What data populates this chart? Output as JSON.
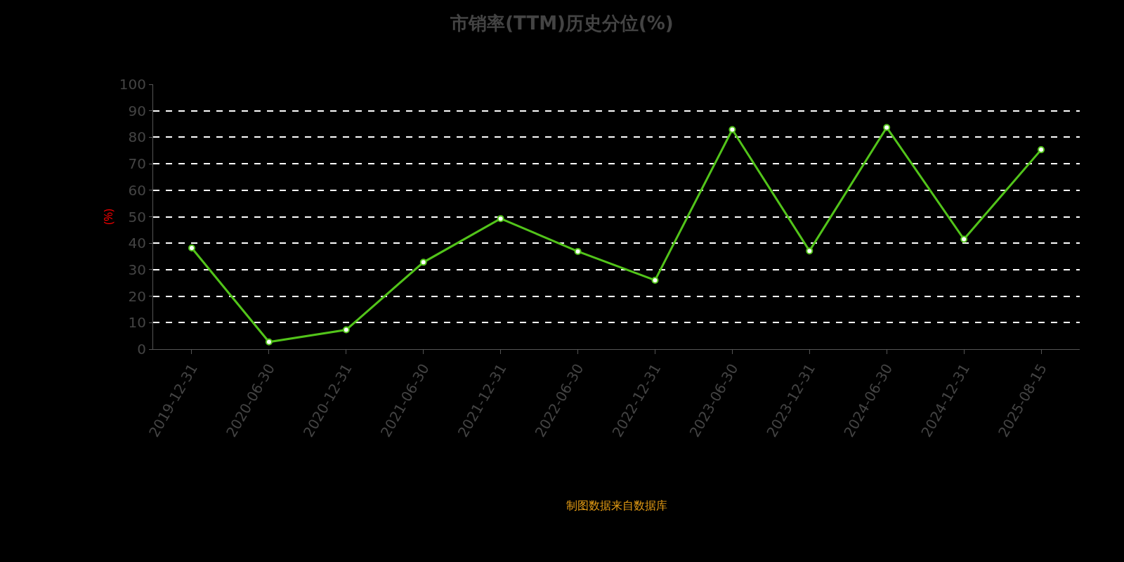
{
  "chart_data": {
    "type": "line",
    "title": "市销率(TTM)历史分位(%)",
    "ylabel": "(%)",
    "categories": [
      "2019-12-31",
      "2020-06-30",
      "2020-12-31",
      "2021-06-30",
      "2021-12-31",
      "2022-06-30",
      "2022-12-31",
      "2023-06-30",
      "2023-12-31",
      "2024-06-30",
      "2024-12-31",
      "2025-08-15"
    ],
    "series": [
      {
        "color": "#52c41a",
        "values": [
          38.2,
          2.7,
          7.3,
          32.8,
          49.3,
          36.9,
          26,
          82.9,
          37.1,
          83.7,
          41.5,
          75.3
        ]
      }
    ],
    "ylim": [
      0,
      100
    ],
    "yticks": [
      0,
      10,
      20,
      30,
      40,
      50,
      60,
      70,
      80,
      90,
      100
    ],
    "grid": "y",
    "marker": "circle",
    "line_style": "solid",
    "legend": false,
    "annotations": [
      "制图数据来自数据库"
    ]
  }
}
